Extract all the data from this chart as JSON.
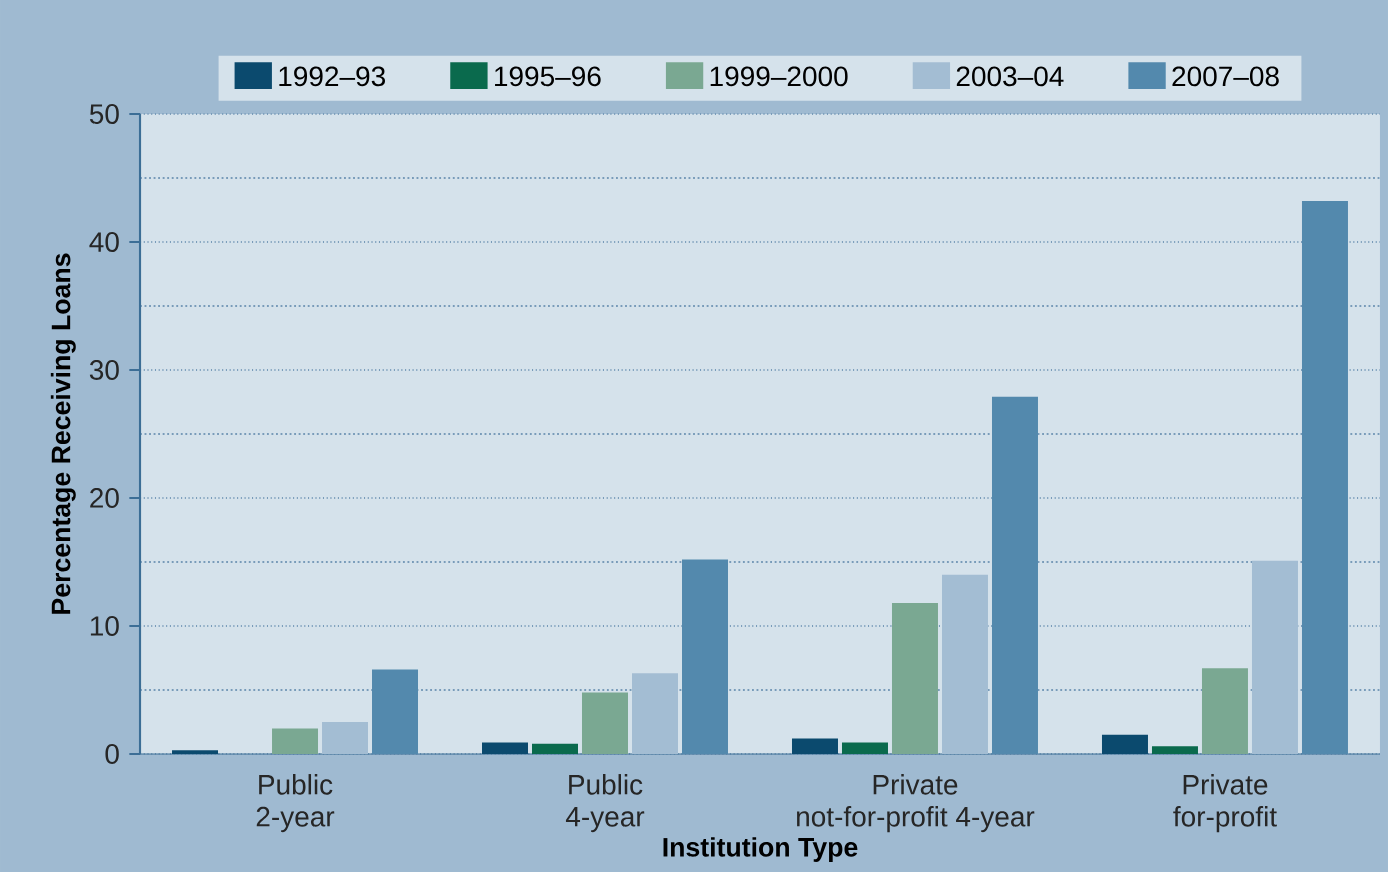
{
  "chart_data": {
    "type": "bar",
    "xlabel": "Institution Type",
    "ylabel": "Percentage Receiving Loans",
    "categories": [
      "Public 2-year",
      "Public 4-year",
      "Private not-for-profit 4-year",
      "Private for-profit"
    ],
    "series": [
      {
        "name": "1992–93",
        "color": "#0b4a6e",
        "values": [
          0.3,
          0.9,
          1.2,
          1.5
        ]
      },
      {
        "name": "1995–96",
        "color": "#0a6a4d",
        "values": [
          0,
          0.8,
          0.9,
          0.6
        ]
      },
      {
        "name": "1999–2000",
        "color": "#7aa892",
        "values": [
          2.0,
          4.8,
          11.8,
          6.7
        ]
      },
      {
        "name": "2003–04",
        "color": "#a3bdd3",
        "values": [
          2.5,
          6.3,
          14.0,
          15.1
        ]
      },
      {
        "name": "2007–08",
        "color": "#5389ad",
        "values": [
          6.6,
          15.2,
          27.9,
          43.2
        ]
      }
    ],
    "ylim": [
      0,
      50
    ],
    "yticks": [
      0,
      10,
      20,
      30,
      40,
      50
    ],
    "grid": "y",
    "legend": "top"
  }
}
